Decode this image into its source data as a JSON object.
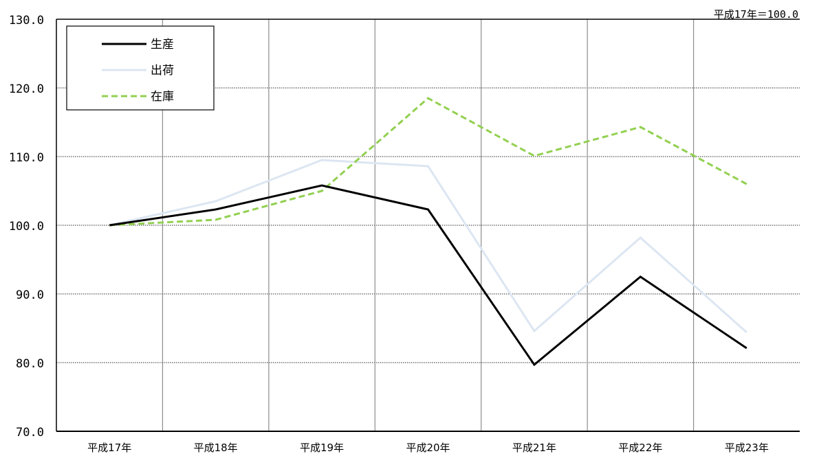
{
  "chart_data": {
    "type": "line",
    "note": "平成17年＝100.0",
    "categories": [
      "平成17年",
      "平成18年",
      "平成19年",
      "平成20年",
      "平成21年",
      "平成22年",
      "平成23年"
    ],
    "y_tick_labels": [
      "70.0",
      "80.0",
      "90.0",
      "100.0",
      "110.0",
      "120.0",
      "130.0"
    ],
    "ylim": [
      70,
      130
    ],
    "grid": true,
    "legend_position": "top-left",
    "series": [
      {
        "name": "生産",
        "color": "#000000",
        "dash": "solid",
        "values": [
          100.0,
          102.3,
          105.8,
          102.3,
          79.7,
          92.5,
          82.1
        ]
      },
      {
        "name": "出荷",
        "color": "#dce6f2",
        "dash": "solid",
        "values": [
          100.0,
          103.5,
          109.5,
          108.6,
          84.6,
          98.2,
          84.4
        ]
      },
      {
        "name": "在庫",
        "color": "#92d050",
        "dash": "dashed",
        "values": [
          100.0,
          100.8,
          105.0,
          118.5,
          110.1,
          114.3,
          106.0
        ]
      }
    ]
  }
}
